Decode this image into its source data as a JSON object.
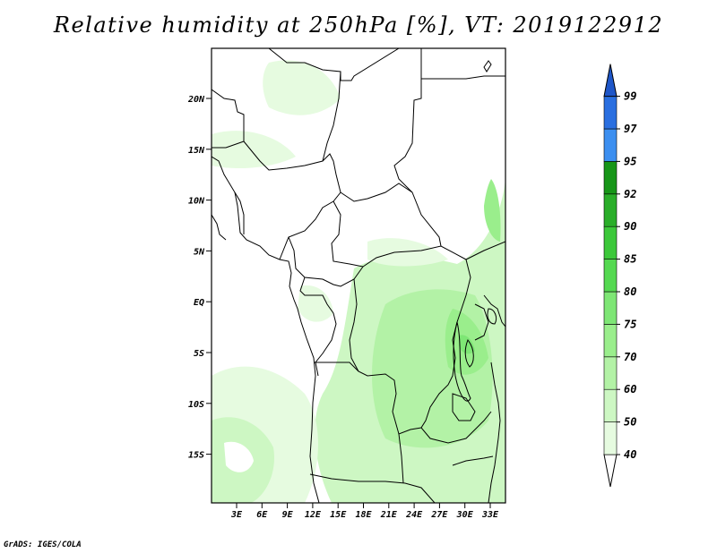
{
  "title": "Relative humidity at 250hPa [%], VT: 2019122912",
  "credit": "GrADS: IGES/COLA",
  "map": {
    "lat_ticks": [
      "20N",
      "15N",
      "10N",
      "5N",
      "EQ",
      "5S",
      "10S",
      "15S"
    ],
    "lon_ticks": [
      "3E",
      "6E",
      "9E",
      "12E",
      "15E",
      "18E",
      "21E",
      "24E",
      "27E",
      "30E",
      "33E"
    ]
  },
  "colorbar": {
    "levels": [
      "40",
      "50",
      "60",
      "70",
      "75",
      "80",
      "85",
      "90",
      "92",
      "95",
      "97",
      "99"
    ],
    "colors": [
      "#ffffff",
      "#e6fbe0",
      "#cdf7c3",
      "#b3f2a6",
      "#9aee8c",
      "#7ee675",
      "#55d951",
      "#3cc83a",
      "#2aae29",
      "#179618",
      "#3c8ff0",
      "#2a6fe0",
      "#1e56c8"
    ]
  }
}
